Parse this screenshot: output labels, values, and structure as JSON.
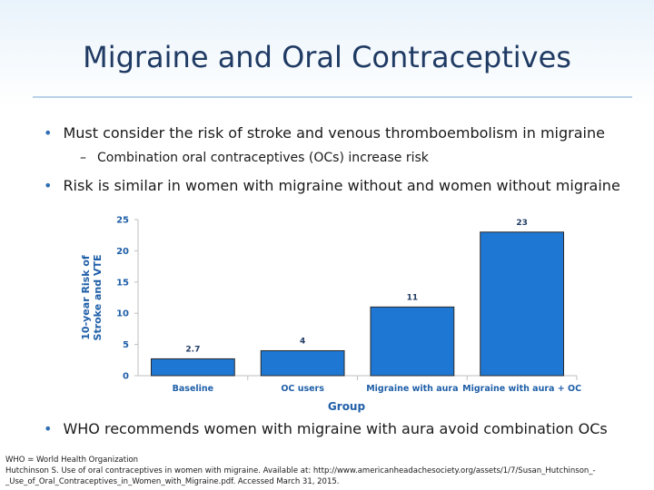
{
  "slide": {
    "title": "Migraine and Oral Contraceptives",
    "bullets": [
      "Must consider the risk of stroke and venous thromboembolism in migraine",
      "Risk is similar in women with migraine without and women without migraine",
      "WHO recommends women with migraine with aura avoid combination OCs"
    ],
    "sub_bullets": [
      "Combination oral contraceptives (OCs) increase risk"
    ],
    "bullet_glyph": "•",
    "sub_glyph": "–",
    "footer": [
      "WHO = World Health Organization",
      "Hutchinson S. Use of oral contraceptives in women with migraine. Available at: http://www.americanheadachesociety.org/assets/1/7/Susan_Hutchinson_-",
      "_Use_of_Oral_Contraceptives_in_Women_with_Migraine.pdf. Accessed March 31, 2015."
    ],
    "colors": {
      "title": "#1f3a63",
      "accent": "#2f6fb3",
      "bar": "#1f77d4"
    }
  },
  "chart_data": {
    "type": "bar",
    "categories": [
      "Baseline",
      "OC users",
      "Migraine with aura",
      "Migraine with aura + OC"
    ],
    "values": [
      2.7,
      4,
      11,
      23
    ],
    "data_labels": [
      "2.7",
      "4",
      "11",
      "23"
    ],
    "xlabel": "Group",
    "ylabel": "10-year Risk of Stroke and VTE",
    "ylabel_lines": [
      "10-year Risk of",
      "Stroke and VTE"
    ],
    "ylim": [
      0,
      25
    ],
    "yticks": [
      0,
      5,
      10,
      15,
      20,
      25
    ],
    "grid": false,
    "legend": "none"
  }
}
